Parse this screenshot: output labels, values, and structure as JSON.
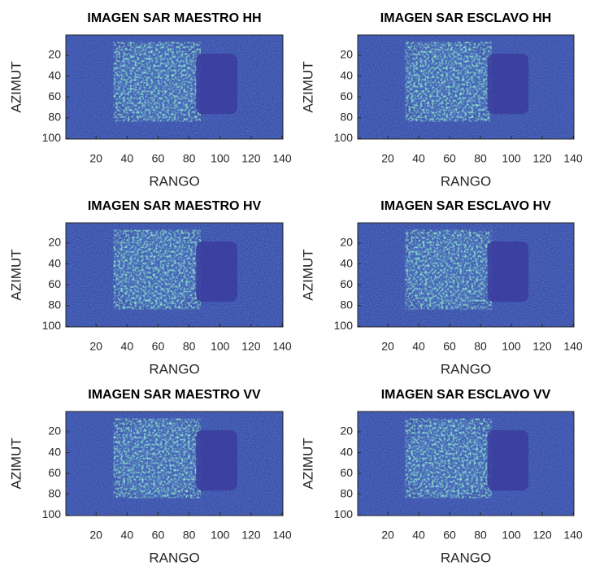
{
  "chart_data": [
    {
      "type": "image",
      "title": "IMAGEN SAR MAESTRO HH",
      "xlabel": "RANGO",
      "ylabel": "AZIMUT",
      "xlim": [
        0.5,
        140.5
      ],
      "ylim": [
        0.5,
        100.5
      ],
      "ydir": "reverse",
      "xticks": [
        20,
        40,
        60,
        80,
        100,
        120,
        140
      ],
      "yticks": [
        20,
        40,
        60,
        80,
        100
      ]
    },
    {
      "type": "image",
      "title": "IMAGEN SAR ESCLAVO HH",
      "xlabel": "RANGO",
      "ylabel": "AZIMUT",
      "xlim": [
        0.5,
        140.5
      ],
      "ylim": [
        0.5,
        100.5
      ],
      "ydir": "reverse",
      "xticks": [
        20,
        40,
        60,
        80,
        100,
        120,
        140
      ],
      "yticks": [
        20,
        40,
        60,
        80,
        100
      ]
    },
    {
      "type": "image",
      "title": "IMAGEN SAR MAESTRO HV",
      "xlabel": "RANGO",
      "ylabel": "AZIMUT",
      "xlim": [
        0.5,
        140.5
      ],
      "ylim": [
        0.5,
        100.5
      ],
      "ydir": "reverse",
      "xticks": [
        20,
        40,
        60,
        80,
        100,
        120,
        140
      ],
      "yticks": [
        20,
        40,
        60,
        80,
        100
      ]
    },
    {
      "type": "image",
      "title": "IMAGEN SAR ESCLAVO HV",
      "xlabel": "RANGO",
      "ylabel": "AZIMUT",
      "xlim": [
        0.5,
        140.5
      ],
      "ylim": [
        0.5,
        100.5
      ],
      "ydir": "reverse",
      "xticks": [
        20,
        40,
        60,
        80,
        100,
        120,
        140
      ],
      "yticks": [
        20,
        40,
        60,
        80,
        100
      ]
    },
    {
      "type": "image",
      "title": "IMAGEN SAR MAESTRO VV",
      "xlabel": "RANGO",
      "ylabel": "AZIMUT",
      "xlim": [
        0.5,
        140.5
      ],
      "ylim": [
        0.5,
        100.5
      ],
      "ydir": "reverse",
      "xticks": [
        20,
        40,
        60,
        80,
        100,
        120,
        140
      ],
      "yticks": [
        20,
        40,
        60,
        80,
        100
      ]
    },
    {
      "type": "image",
      "title": "IMAGEN SAR ESCLAVO VV",
      "xlabel": "RANGO",
      "ylabel": "AZIMUT",
      "xlim": [
        0.5,
        140.5
      ],
      "ylim": [
        0.5,
        100.5
      ],
      "ydir": "reverse",
      "xticks": [
        20,
        40,
        60,
        80,
        100,
        120,
        140
      ],
      "yticks": [
        20,
        40,
        60,
        80,
        100
      ]
    }
  ]
}
